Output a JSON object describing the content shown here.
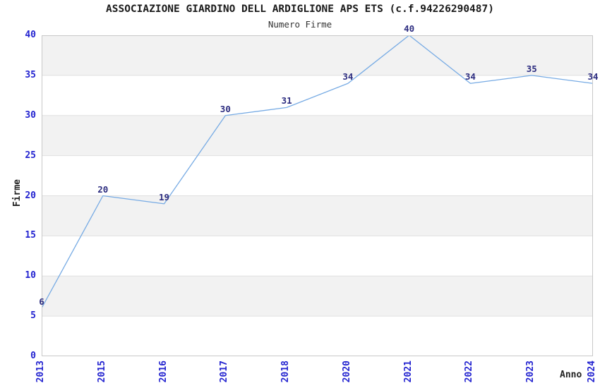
{
  "chart_data": {
    "type": "line",
    "title": "ASSOCIAZIONE GIARDINO DELL ARDIGLIONE APS ETS (c.f.94226290487)",
    "subtitle": "Numero Firme",
    "xlabel": "Anno",
    "ylabel": "Firme",
    "categories": [
      "2013",
      "2015",
      "2016",
      "2017",
      "2018",
      "2020",
      "2021",
      "2022",
      "2023",
      "2024"
    ],
    "values": [
      6,
      20,
      19,
      30,
      31,
      34,
      40,
      34,
      35,
      34
    ],
    "ylim": [
      0,
      40
    ],
    "yticks": [
      0,
      5,
      10,
      15,
      20,
      25,
      30,
      35,
      40
    ],
    "legend": "none",
    "grid": "alternating-horizontal-bands",
    "data_labels_visible": true,
    "colors": {
      "line": "#77abe4",
      "band": "#f2f2f2",
      "band_alt": "#ffffff",
      "gridline": "#e0e0e0",
      "plot_border": "#c8c8c8",
      "tick_label": "#2323d0",
      "data_label": "#2d2d80",
      "title_text": "#1a1a1a"
    }
  }
}
